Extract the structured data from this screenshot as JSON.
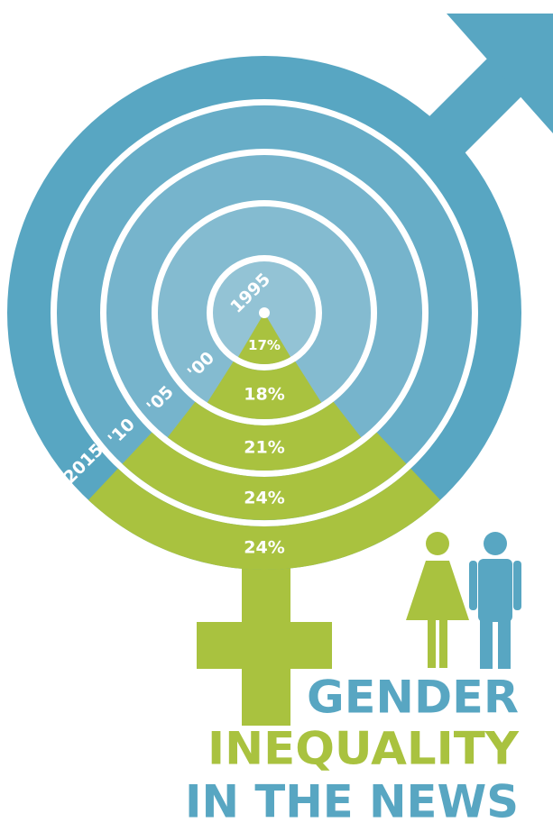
{
  "chart_data": {
    "type": "radial",
    "title_lines": [
      "GENDER",
      "INEQUALITY",
      "IN THE NEWS"
    ],
    "categories": [
      "1995",
      "'00",
      "'05",
      "'10",
      "2015"
    ],
    "values": [
      17,
      18,
      21,
      24,
      24
    ],
    "value_labels": [
      "17%",
      "18%",
      "21%",
      "24%",
      "24%"
    ],
    "ring_colors": [
      "#93c3d5",
      "#84bbd0",
      "#76b4cc",
      "#67adc7",
      "#58a6c2"
    ],
    "color": "#a9c23f"
  }
}
